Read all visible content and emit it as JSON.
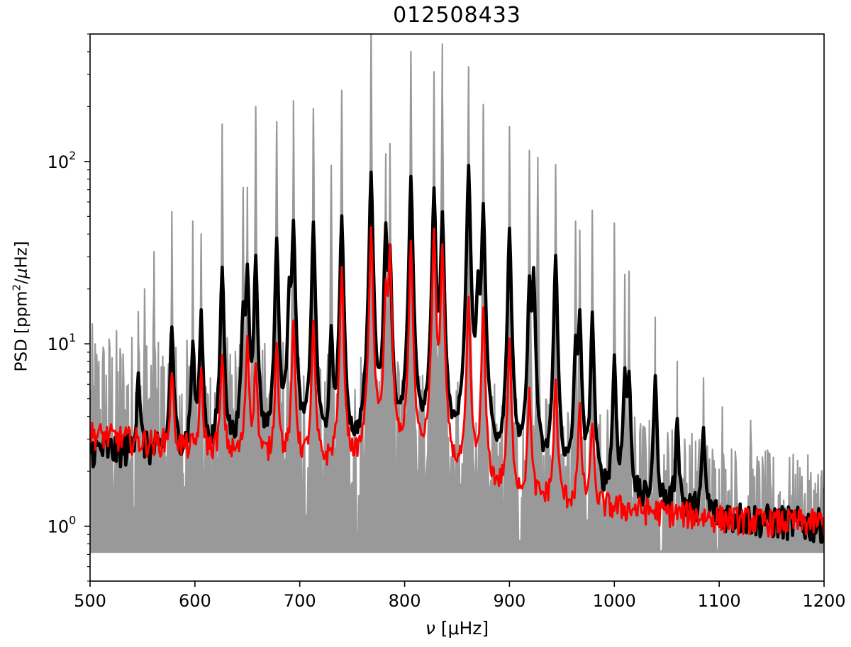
{
  "chart_data": {
    "type": "line",
    "title": "012508433",
    "xlabel": {
      "symbol": "ν",
      "unit": "[μHz]"
    },
    "ylabel": {
      "before": "PSD [ppm",
      "sup": "2",
      "after": "/",
      "mu": "μ",
      "end": "Hz]"
    },
    "xlim": [
      500,
      1200
    ],
    "ylim": [
      0.5,
      500
    ],
    "yscale": "log",
    "x_ticks": [
      500,
      600,
      700,
      800,
      900,
      1000,
      1100,
      1200
    ],
    "y_ticks": [
      {
        "value": 1,
        "base": "10",
        "exp": "0"
      },
      {
        "value": 10,
        "base": "10",
        "exp": "1"
      },
      {
        "value": 100,
        "base": "10",
        "exp": "2"
      }
    ],
    "grid": false,
    "series": [
      {
        "color": "#999999",
        "style": "raw noisy spectrum (filled envelope)",
        "floor": 0.72,
        "noise_top_points": [
          [
            500,
            13
          ],
          [
            550,
            12
          ],
          [
            600,
            11
          ],
          [
            650,
            11
          ],
          [
            700,
            10
          ],
          [
            750,
            9
          ],
          [
            800,
            8
          ],
          [
            850,
            7
          ],
          [
            900,
            6
          ],
          [
            950,
            5
          ],
          [
            1000,
            4.6
          ],
          [
            1050,
            3.8
          ],
          [
            1100,
            3.0
          ],
          [
            1150,
            2.6
          ],
          [
            1200,
            2.4
          ]
        ],
        "peaks": [
          [
            546,
            15
          ],
          [
            552,
            20
          ],
          [
            561,
            32
          ],
          [
            578,
            53
          ],
          [
            598,
            47
          ],
          [
            606,
            40
          ],
          [
            626,
            160
          ],
          [
            646,
            72
          ],
          [
            650,
            72
          ],
          [
            658,
            200
          ],
          [
            678,
            165
          ],
          [
            694,
            215
          ],
          [
            713,
            195
          ],
          [
            730,
            95
          ],
          [
            740,
            245
          ],
          [
            768,
            520
          ],
          [
            782,
            110
          ],
          [
            786,
            125
          ],
          [
            806,
            400
          ],
          [
            828,
            310
          ],
          [
            836,
            440
          ],
          [
            861,
            330
          ],
          [
            875,
            205
          ],
          [
            900,
            155
          ],
          [
            919,
            115
          ],
          [
            927,
            105
          ],
          [
            944,
            96
          ],
          [
            963,
            47
          ],
          [
            967,
            42
          ],
          [
            979,
            54
          ],
          [
            1000,
            46
          ],
          [
            1010,
            24
          ],
          [
            1014,
            25
          ],
          [
            1039,
            14
          ],
          [
            1060,
            8
          ],
          [
            1085,
            6.5
          ],
          [
            1103,
            4.5
          ],
          [
            1130,
            3.8
          ]
        ]
      },
      {
        "color": "#000000",
        "style": "smoothed spectrum (thick)",
        "background_points": [
          [
            500,
            2.6
          ],
          [
            550,
            2.5
          ],
          [
            600,
            2.4
          ],
          [
            650,
            2.1
          ],
          [
            700,
            1.9
          ],
          [
            750,
            1.75
          ],
          [
            800,
            1.6
          ],
          [
            850,
            1.5
          ],
          [
            900,
            1.45
          ],
          [
            950,
            1.35
          ],
          [
            1000,
            1.25
          ],
          [
            1050,
            1.2
          ],
          [
            1100,
            1.12
          ],
          [
            1150,
            1.05
          ],
          [
            1200,
            1.0
          ]
        ],
        "peaks": [
          [
            546,
            4.6
          ],
          [
            578,
            10
          ],
          [
            598,
            7.5
          ],
          [
            606,
            12
          ],
          [
            626,
            24
          ],
          [
            646,
            12
          ],
          [
            650,
            23
          ],
          [
            658,
            27
          ],
          [
            678,
            35
          ],
          [
            690,
            16
          ],
          [
            694,
            43
          ],
          [
            713,
            44
          ],
          [
            730,
            9
          ],
          [
            740,
            48
          ],
          [
            768,
            85
          ],
          [
            782,
            40
          ],
          [
            786,
            28
          ],
          [
            806,
            80
          ],
          [
            828,
            68
          ],
          [
            836,
            49
          ],
          [
            861,
            92
          ],
          [
            870,
            17
          ],
          [
            875,
            55
          ],
          [
            900,
            41
          ],
          [
            919,
            19
          ],
          [
            923,
            22
          ],
          [
            944,
            29
          ],
          [
            963,
            8
          ],
          [
            967,
            13
          ],
          [
            979,
            13
          ],
          [
            1000,
            7
          ],
          [
            1010,
            5.3
          ],
          [
            1014,
            5.3
          ],
          [
            1039,
            5.3
          ],
          [
            1060,
            2.8
          ],
          [
            1085,
            2.2
          ]
        ]
      },
      {
        "color": "#ff0000",
        "style": "model / second smoothed spectrum",
        "background_points": [
          [
            500,
            3.2
          ],
          [
            550,
            2.9
          ],
          [
            600,
            2.6
          ],
          [
            650,
            2.3
          ],
          [
            700,
            2.1
          ],
          [
            750,
            1.9
          ],
          [
            800,
            1.75
          ],
          [
            850,
            1.55
          ],
          [
            900,
            1.4
          ],
          [
            950,
            1.3
          ],
          [
            1000,
            1.25
          ],
          [
            1050,
            1.18
          ],
          [
            1100,
            1.1
          ],
          [
            1150,
            1.05
          ],
          [
            1200,
            1.05
          ]
        ],
        "peaks": [
          [
            578,
            4.5
          ],
          [
            606,
            4.5
          ],
          [
            626,
            6.2
          ],
          [
            650,
            8.5
          ],
          [
            658,
            5.5
          ],
          [
            678,
            8
          ],
          [
            694,
            11
          ],
          [
            713,
            11
          ],
          [
            740,
            24
          ],
          [
            768,
            41
          ],
          [
            782,
            17
          ],
          [
            786,
            31
          ],
          [
            806,
            34
          ],
          [
            828,
            40
          ],
          [
            836,
            32
          ],
          [
            861,
            16
          ],
          [
            875,
            14
          ],
          [
            900,
            9
          ],
          [
            919,
            4.2
          ],
          [
            944,
            5
          ],
          [
            967,
            3.2
          ],
          [
            979,
            2.5
          ]
        ]
      }
    ]
  }
}
